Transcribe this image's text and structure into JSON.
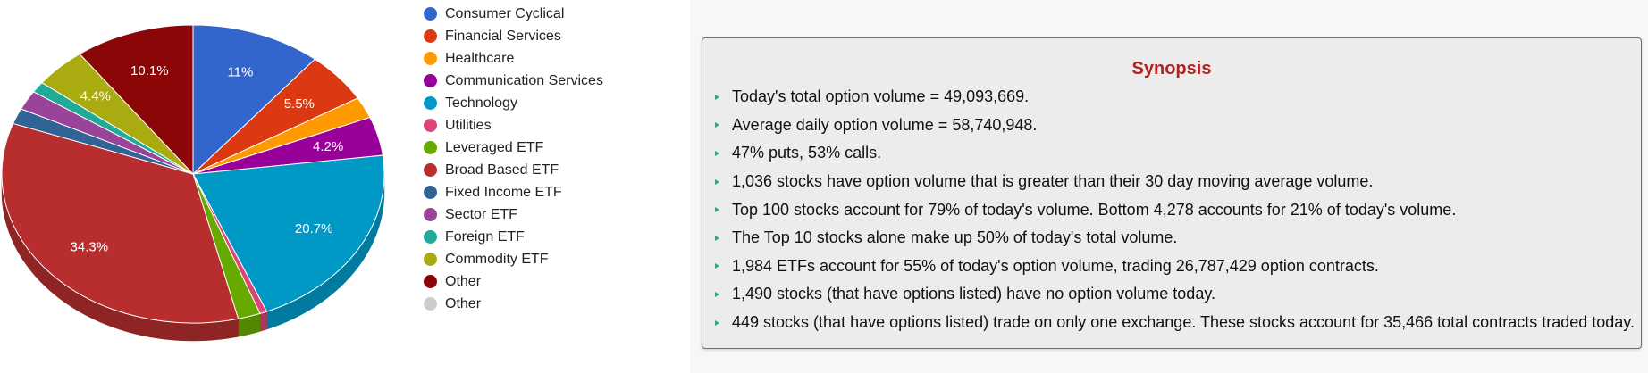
{
  "chart_data": {
    "type": "pie",
    "style": "3d",
    "start_angle_deg": 0,
    "direction": "clockwise",
    "legend_position": "right",
    "slices": [
      {
        "name": "Consumer Cyclical",
        "value": 11.0,
        "label": "11%",
        "color": "#3366cc",
        "side": "#2a53a8"
      },
      {
        "name": "Financial Services",
        "value": 5.5,
        "label": "5.5%",
        "color": "#dc3912",
        "side": "#b02d0e"
      },
      {
        "name": "Healthcare",
        "value": 2.3,
        "label": "",
        "color": "#ff9900",
        "side": "#cc7a00"
      },
      {
        "name": "Communication Services",
        "value": 4.2,
        "label": "4.2%",
        "color": "#990099",
        "side": "#730073"
      },
      {
        "name": "Technology",
        "value": 20.7,
        "label": "20.7%",
        "color": "#0099c6",
        "side": "#007a9e"
      },
      {
        "name": "Utilities",
        "value": 0.6,
        "label": "",
        "color": "#dd4477",
        "side": "#b0365f"
      },
      {
        "name": "Leveraged ETF",
        "value": 1.9,
        "label": "",
        "color": "#66aa00",
        "side": "#528800"
      },
      {
        "name": "Broad Based ETF",
        "value": 34.3,
        "label": "34.3%",
        "color": "#b82e2e",
        "side": "#8f2424"
      },
      {
        "name": "Fixed Income ETF",
        "value": 1.7,
        "label": "",
        "color": "#316395",
        "side": "#274f77"
      },
      {
        "name": "Sector ETF",
        "value": 2.1,
        "label": "",
        "color": "#994499",
        "side": "#7a367a"
      },
      {
        "name": "Foreign ETF",
        "value": 1.2,
        "label": "",
        "color": "#22aa99",
        "side": "#1b887a"
      },
      {
        "name": "Commodity ETF",
        "value": 4.4,
        "label": "4.4%",
        "color": "#aaaa11",
        "side": "#88880d"
      },
      {
        "name": "Other",
        "value": 10.1,
        "label": "10.1%",
        "color": "#8b0707",
        "side": "#6a0505"
      },
      {
        "name": "Other",
        "value": 0,
        "label": "",
        "color": "#cccccc",
        "side": "#aaaaaa"
      }
    ]
  },
  "synopsis": {
    "title": "Synopsis",
    "items": [
      "Today's total option volume = 49,093,669.",
      "Average daily option volume = 58,740,948.",
      "47% puts, 53% calls.",
      "1,036 stocks have option volume that is greater than their 30 day moving average volume.",
      "Top 100 stocks account for 79% of today's volume. Bottom 4,278 accounts for 21% of today's volume.",
      "The Top 10 stocks alone make up 50% of today's total volume.",
      "1,984 ETFs account for 55% of today's option volume, trading 26,787,429 option contracts.",
      "1,490 stocks (that have options listed) have no option volume today.",
      "449 stocks (that have options listed) trade on only one exchange. These stocks account for 35,466 total contracts traded today."
    ]
  }
}
